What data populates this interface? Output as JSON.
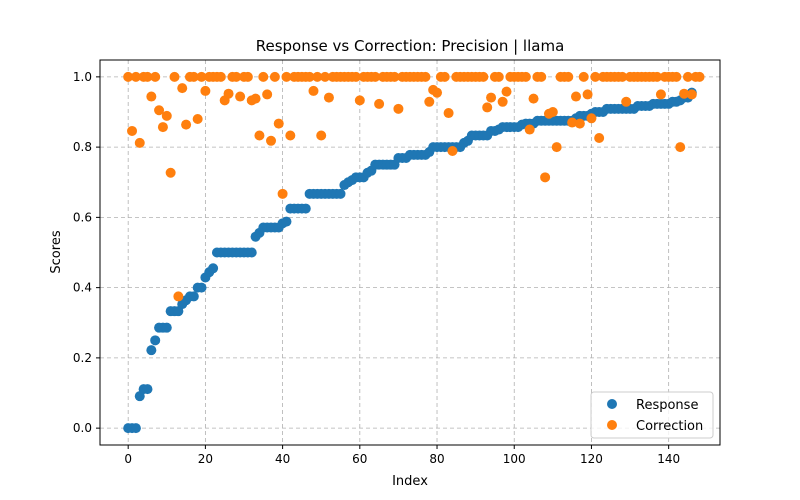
{
  "chart_data": {
    "type": "scatter",
    "title": "Response vs Correction: Precision | llama",
    "xlabel": "Index",
    "ylabel": "Scores",
    "xlim": [
      -7.3,
      153.3
    ],
    "ylim": [
      -0.048,
      1.048
    ],
    "xticks": [
      0,
      20,
      40,
      60,
      80,
      100,
      120,
      140
    ],
    "yticks": [
      0.0,
      0.2,
      0.4,
      0.6,
      0.8,
      1.0
    ],
    "ytick_labels": [
      "0.0",
      "0.2",
      "0.4",
      "0.6",
      "0.8",
      "1.0"
    ],
    "grid": true,
    "legend_position": "lower-right",
    "series": [
      {
        "name": "Response",
        "color": "#1f77b4",
        "y": [
          0,
          0,
          0,
          0.091,
          0.111,
          0.111,
          0.222,
          0.25,
          0.286,
          0.286,
          0.286,
          0.333,
          0.333,
          0.333,
          0.353,
          0.364,
          0.375,
          0.375,
          0.4,
          0.4,
          0.429,
          0.444,
          0.455,
          0.5,
          0.5,
          0.5,
          0.5,
          0.5,
          0.5,
          0.5,
          0.5,
          0.5,
          0.5,
          0.545,
          0.556,
          0.571,
          0.571,
          0.571,
          0.571,
          0.571,
          0.583,
          0.588,
          0.625,
          0.625,
          0.625,
          0.625,
          0.625,
          0.667,
          0.667,
          0.667,
          0.667,
          0.667,
          0.667,
          0.667,
          0.667,
          0.667,
          0.692,
          0.7,
          0.706,
          0.714,
          0.714,
          0.714,
          0.727,
          0.733,
          0.75,
          0.75,
          0.75,
          0.75,
          0.75,
          0.75,
          0.769,
          0.769,
          0.769,
          0.778,
          0.778,
          0.778,
          0.778,
          0.778,
          0.786,
          0.8,
          0.8,
          0.8,
          0.8,
          0.8,
          0.8,
          0.8,
          0.8,
          0.812,
          0.818,
          0.833,
          0.833,
          0.833,
          0.833,
          0.833,
          0.846,
          0.846,
          0.85,
          0.857,
          0.857,
          0.857,
          0.857,
          0.857,
          0.864,
          0.867,
          0.867,
          0.867,
          0.875,
          0.875,
          0.875,
          0.875,
          0.875,
          0.875,
          0.875,
          0.875,
          0.875,
          0.875,
          0.882,
          0.889,
          0.889,
          0.889,
          0.895,
          0.9,
          0.9,
          0.9,
          0.909,
          0.909,
          0.909,
          0.909,
          0.909,
          0.909,
          0.909,
          0.909,
          0.917,
          0.917,
          0.917,
          0.917,
          0.923,
          0.923,
          0.923,
          0.923,
          0.923,
          0.929,
          0.929,
          0.933,
          0.941,
          0.941,
          0.955
        ]
      },
      {
        "name": "Correction",
        "color": "#ff7f0e",
        "y": [
          1,
          0.846,
          1,
          0.812,
          1,
          1,
          0.944,
          1,
          0.905,
          0.857,
          0.889,
          0.727,
          1,
          0.375,
          0.968,
          0.864,
          1,
          1,
          0.88,
          1,
          0.96,
          1,
          1,
          1,
          1,
          0.933,
          0.952,
          1,
          1,
          0.944,
          1,
          1,
          0.933,
          0.938,
          0.833,
          1,
          0.95,
          0.818,
          1,
          0.867,
          0.667,
          1,
          0.833,
          1,
          1,
          1,
          1,
          1,
          0.96,
          1,
          0.833,
          1,
          0.941,
          1,
          1,
          1,
          1,
          1,
          1,
          1,
          0.933,
          1,
          1,
          1,
          1,
          0.923,
          1,
          1,
          1,
          1,
          0.909,
          1,
          1,
          1,
          1,
          1,
          1,
          1,
          0.929,
          0.963,
          0.955,
          1,
          1,
          0.897,
          0.789,
          1,
          1,
          1,
          1,
          1,
          1,
          1,
          1,
          0.913,
          0.941,
          1,
          1,
          0.929,
          0.958,
          1,
          1,
          1,
          1,
          1,
          0.85,
          0.938,
          1,
          1,
          0.714,
          0.895,
          0.9,
          0.8,
          1,
          1,
          1,
          0.87,
          0.944,
          0.867,
          1,
          0.95,
          0.882,
          1,
          0.826,
          1,
          1,
          1,
          1,
          1,
          1,
          0.929,
          1,
          1,
          1,
          1,
          1,
          1,
          1,
          1,
          0.95,
          1,
          1,
          1,
          1,
          0.8,
          0.952,
          1,
          0.95,
          1,
          1
        ]
      }
    ]
  }
}
